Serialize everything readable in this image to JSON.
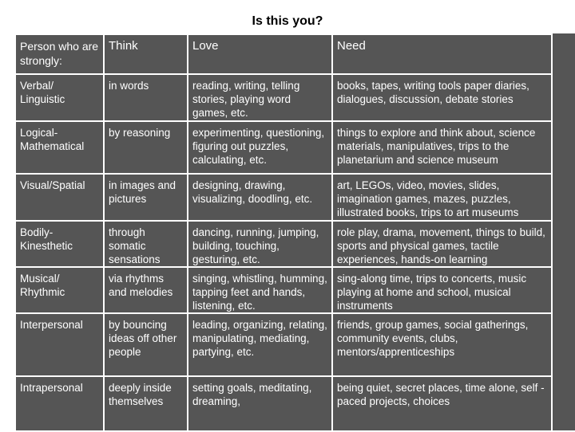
{
  "title": "Is this you?",
  "table": {
    "headers": [
      "Person who are strongly:",
      "Think",
      "Love",
      "Need"
    ],
    "rows": [
      {
        "type": "Verbal/ Linguistic",
        "think": "in words",
        "love": "reading, writing, telling stories, playing word games, etc.",
        "need": "books, tapes, writing tools paper diaries, dialogues, discussion, debate stories"
      },
      {
        "type": "Logical- Mathematical",
        "think": "by reasoning",
        "love": "experimenting, questioning, figuring out puzzles, calculating, etc.",
        "need": "things to explore and think about, science materials, manipulatives, trips to the planetarium and science museum"
      },
      {
        "type": "Visual/Spatial",
        "think": "in images and pictures",
        "love": "designing, drawing, visualizing, doodling, etc.",
        "need": "art, LEGOs, video, movies, slides, imagination games, mazes, puzzles, illustrated books, trips to art museums"
      },
      {
        "type": "Bodily- Kinesthetic",
        "think": "through somatic sensations",
        "love": "dancing, running, jumping, building, touching, gesturing, etc.",
        "need": "role play, drama, movement, things to build, sports and physical games, tactile experiences, hands-on learning"
      },
      {
        "type": "Musical/ Rhythmic",
        "think": "via rhythms and melodies",
        "love": "singing, whistling, humming, tapping feet and hands, listening, etc.",
        "need": "sing-along time, trips to concerts, music playing at home and school, musical instruments"
      },
      {
        "type": "Interpersonal",
        "think": "by bouncing ideas off other people",
        "love": "leading, organizing, relating, manipulating, mediating, partying, etc.",
        "need": "friends, group games, social gatherings, community events, clubs, mentors/apprenticeships"
      },
      {
        "type": "Intrapersonal",
        "think": "deeply inside themselves",
        "love": "setting goals, meditating, dreaming,",
        "need": "being quiet, secret places, time alone, self -paced projects, choices"
      }
    ]
  }
}
